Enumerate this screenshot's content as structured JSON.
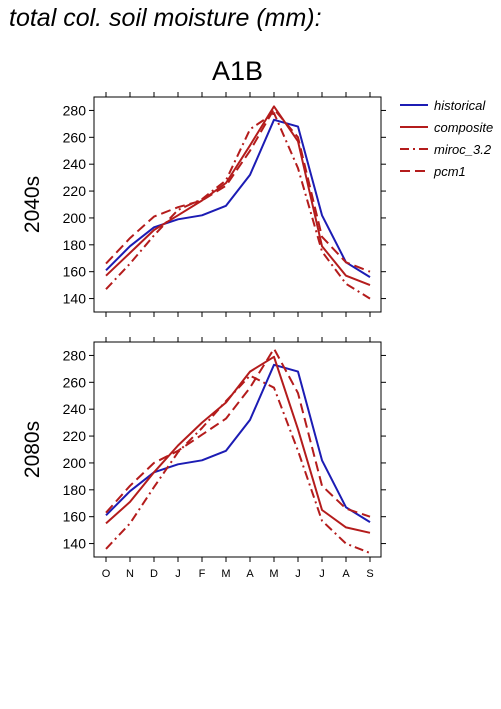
{
  "figure_title": "total col. soil moisture (mm):",
  "scenario_title": "A1B",
  "colors": {
    "historical": "#1c1cb4",
    "composite": "#b41c1c",
    "miroc_3.2": "#b41c1c",
    "pcm1": "#b41c1c"
  },
  "chart_data": [
    {
      "type": "line",
      "row_label": "2040s",
      "categories": [
        "O",
        "N",
        "D",
        "J",
        "F",
        "M",
        "A",
        "M",
        "J",
        "J",
        "A",
        "S"
      ],
      "ylim": [
        130,
        290
      ],
      "yticks": [
        140,
        160,
        180,
        200,
        220,
        240,
        260,
        280
      ],
      "legend_position": "right",
      "series": [
        {
          "name": "historical",
          "dash": "solid",
          "values": [
            161,
            179,
            193,
            199,
            202,
            209,
            232,
            273,
            268,
            202,
            167,
            156
          ]
        },
        {
          "name": "composite",
          "dash": "solid",
          "values": [
            157,
            174,
            191,
            202,
            213,
            226,
            254,
            283,
            257,
            179,
            157,
            150
          ]
        },
        {
          "name": "miroc_3.2",
          "dash": "dashdot",
          "values": [
            147,
            166,
            187,
            206,
            214,
            228,
            266,
            278,
            237,
            175,
            151,
            140
          ]
        },
        {
          "name": "pcm1",
          "dash": "dash",
          "values": [
            166,
            185,
            201,
            208,
            213,
            224,
            250,
            281,
            260,
            186,
            167,
            160
          ]
        }
      ]
    },
    {
      "type": "line",
      "row_label": "2080s",
      "categories": [
        "O",
        "N",
        "D",
        "J",
        "F",
        "M",
        "A",
        "M",
        "J",
        "J",
        "A",
        "S"
      ],
      "ylim": [
        130,
        290
      ],
      "yticks": [
        140,
        160,
        180,
        200,
        220,
        240,
        260,
        280
      ],
      "series": [
        {
          "name": "historical",
          "dash": "solid",
          "values": [
            161,
            179,
            193,
            199,
            202,
            209,
            232,
            273,
            268,
            202,
            167,
            156
          ]
        },
        {
          "name": "composite",
          "dash": "solid",
          "values": [
            155,
            171,
            193,
            213,
            230,
            245,
            268,
            279,
            225,
            165,
            152,
            148
          ]
        },
        {
          "name": "miroc_3.2",
          "dash": "dashdot",
          "values": [
            136,
            155,
            182,
            208,
            226,
            246,
            265,
            256,
            209,
            157,
            140,
            133
          ]
        },
        {
          "name": "pcm1",
          "dash": "dash",
          "values": [
            163,
            183,
            200,
            209,
            221,
            233,
            256,
            285,
            252,
            183,
            166,
            160
          ]
        }
      ]
    }
  ]
}
